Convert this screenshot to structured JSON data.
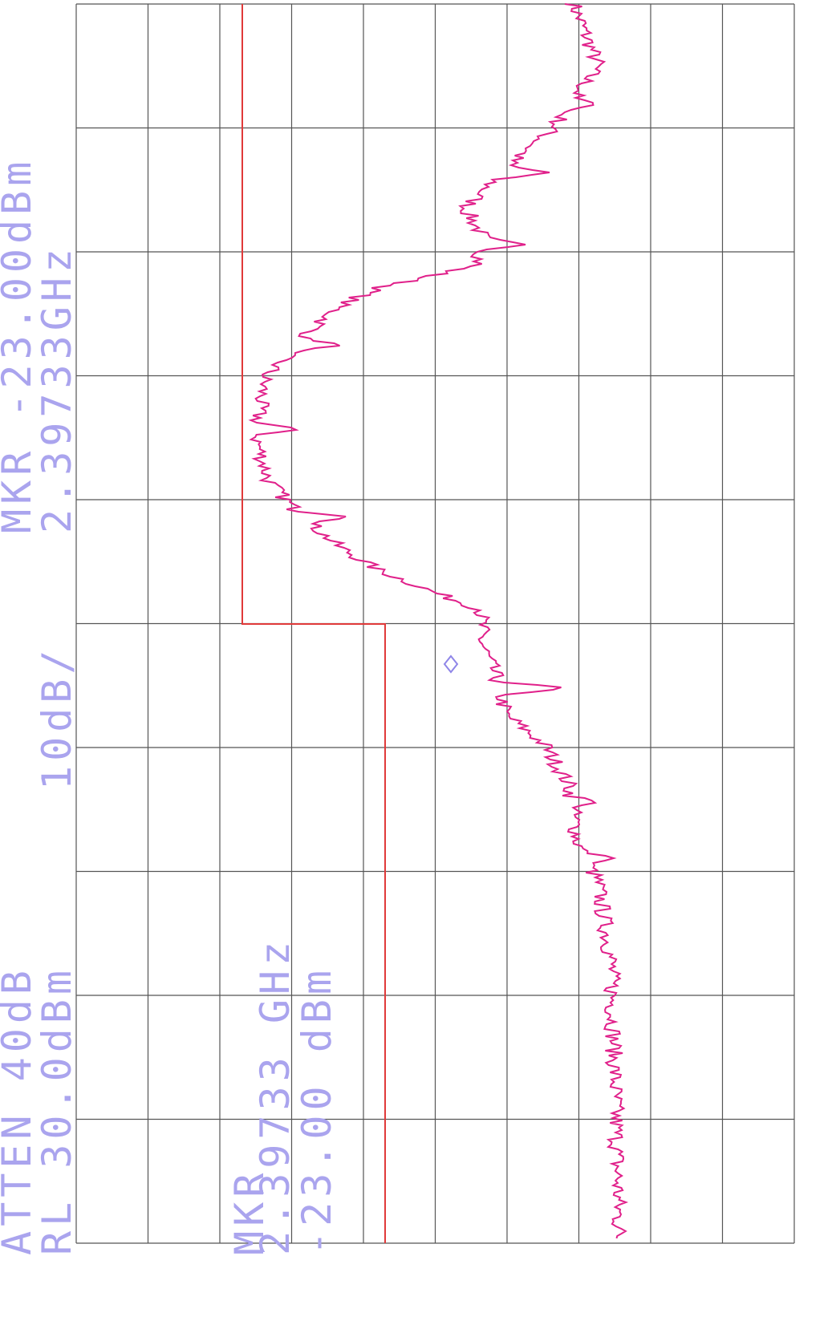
{
  "header": {
    "atten": "ATTEN 40dB",
    "ref_level": "RL 30.0dBm",
    "scale": "10dB/"
  },
  "marker_top": {
    "label": "MKR -23.00dBm",
    "freq": "2.39733GHz"
  },
  "marker_box": {
    "label": "MKR",
    "freq": "2.39733 GHz",
    "level": "-23.00 dBm"
  }
}
